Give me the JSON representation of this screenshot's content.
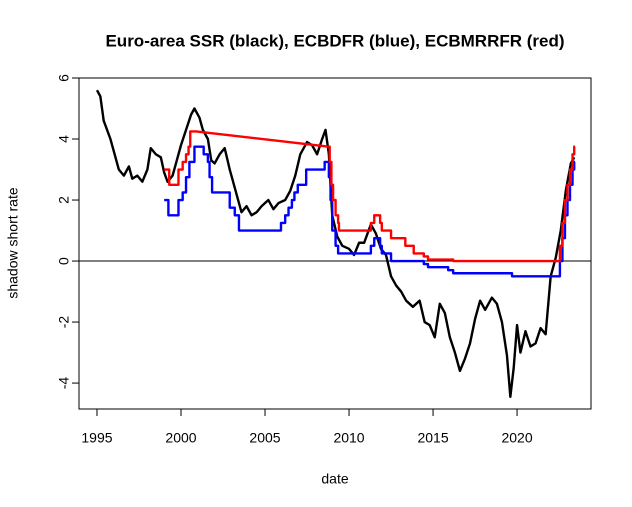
{
  "chart_data": {
    "type": "line",
    "title": "Euro-area SSR (black), ECBDFR (blue), ECBMRRFR (red)",
    "xlabel": "date",
    "ylabel": "shadow short rate",
    "xlim": [
      1993.93,
      2024.4
    ],
    "ylim": [
      -4.85,
      6.0
    ],
    "xticks": [
      1995,
      2000,
      2005,
      2010,
      2015,
      2020
    ],
    "yticks": [
      -4,
      -2,
      0,
      2,
      4,
      6
    ],
    "hline": 0,
    "grid": false,
    "series": [
      {
        "name": "SSR",
        "color": "#000000",
        "x": [
          1995.0,
          1995.2,
          1995.4,
          1995.6,
          1995.8,
          1996.0,
          1996.3,
          1996.6,
          1996.9,
          1997.1,
          1997.4,
          1997.7,
          1998.0,
          1998.2,
          1998.5,
          1998.8,
          1999.0,
          1999.2,
          1999.5,
          1999.7,
          2000.0,
          2000.3,
          2000.6,
          2000.8,
          2001.1,
          2001.3,
          2001.6,
          2001.8,
          2002.0,
          2002.3,
          2002.6,
          2002.9,
          2003.1,
          2003.4,
          2003.6,
          2003.9,
          2004.2,
          2004.5,
          2004.8,
          2005.2,
          2005.5,
          2005.8,
          2006.2,
          2006.5,
          2006.8,
          2007.1,
          2007.5,
          2007.8,
          2008.1,
          2008.4,
          2008.6,
          2008.8,
          2009.0,
          2009.3,
          2009.6,
          2010.0,
          2010.3,
          2010.6,
          2010.9,
          2011.3,
          2011.6,
          2011.9,
          2012.2,
          2012.5,
          2012.8,
          2013.1,
          2013.4,
          2013.8,
          2014.2,
          2014.5,
          2014.8,
          2015.1,
          2015.4,
          2015.7,
          2016.0,
          2016.3,
          2016.6,
          2016.9,
          2017.2,
          2017.5,
          2017.8,
          2018.1,
          2018.5,
          2018.8,
          2019.1,
          2019.4,
          2019.6,
          2019.8,
          2020.0,
          2020.2,
          2020.5,
          2020.8,
          2021.1,
          2021.4,
          2021.7,
          2022.0,
          2022.3,
          2022.6,
          2022.9,
          2023.2,
          2023.4
        ],
        "values": [
          5.6,
          5.4,
          4.6,
          4.3,
          4.0,
          3.6,
          3.0,
          2.8,
          3.1,
          2.7,
          2.8,
          2.6,
          3.0,
          3.7,
          3.5,
          3.4,
          2.9,
          2.6,
          2.8,
          3.2,
          3.8,
          4.3,
          4.8,
          5.0,
          4.7,
          4.3,
          4.0,
          3.3,
          3.2,
          3.5,
          3.7,
          3.0,
          2.6,
          2.0,
          1.6,
          1.8,
          1.5,
          1.6,
          1.8,
          2.0,
          1.7,
          1.9,
          2.0,
          2.3,
          2.8,
          3.5,
          3.9,
          3.8,
          3.5,
          4.0,
          4.3,
          3.5,
          1.5,
          0.8,
          0.5,
          0.4,
          0.2,
          0.6,
          0.6,
          1.2,
          0.9,
          0.4,
          0.2,
          -0.5,
          -0.8,
          -1.0,
          -1.3,
          -1.5,
          -1.3,
          -2.0,
          -2.1,
          -2.5,
          -1.4,
          -1.7,
          -2.5,
          -3.0,
          -3.6,
          -3.2,
          -2.7,
          -1.9,
          -1.3,
          -1.6,
          -1.2,
          -1.4,
          -2.0,
          -3.1,
          -4.45,
          -3.5,
          -2.1,
          -3.0,
          -2.3,
          -2.8,
          -2.7,
          -2.2,
          -2.4,
          -0.5,
          0.1,
          1.0,
          2.3,
          3.2,
          3.4
        ]
      },
      {
        "name": "ECBDFR",
        "color": "#0000ff",
        "x": [
          1999.0,
          1999.25,
          1999.25,
          1999.85,
          1999.85,
          2000.1,
          2000.1,
          2000.3,
          2000.3,
          2000.5,
          2000.5,
          2000.8,
          2000.8,
          2001.35,
          2001.35,
          2001.6,
          2001.6,
          2001.7,
          2001.7,
          2001.85,
          2001.85,
          2002.9,
          2002.9,
          2003.2,
          2003.2,
          2003.45,
          2003.45,
          2005.95,
          2005.95,
          2006.2,
          2006.2,
          2006.4,
          2006.4,
          2006.6,
          2006.6,
          2006.75,
          2006.75,
          2006.95,
          2006.95,
          2007.45,
          2007.45,
          2008.55,
          2008.55,
          2008.8,
          2008.8,
          2008.9,
          2008.9,
          2009.0,
          2009.0,
          2009.2,
          2009.2,
          2009.35,
          2009.35,
          2011.3,
          2011.3,
          2011.5,
          2011.5,
          2011.85,
          2011.85,
          2011.95,
          2011.95,
          2012.5,
          2012.5,
          2014.45,
          2014.45,
          2014.7,
          2014.7,
          2015.9,
          2015.9,
          2016.2,
          2016.2,
          2019.7,
          2019.7,
          2022.55,
          2022.55,
          2022.7,
          2022.7,
          2022.85,
          2022.85,
          2023.0,
          2023.0,
          2023.15,
          2023.15,
          2023.3,
          2023.3,
          2023.4,
          2023.4,
          2023.45
        ],
        "values": [
          2.0,
          2.0,
          1.5,
          1.5,
          2.0,
          2.0,
          2.25,
          2.25,
          2.75,
          2.75,
          3.25,
          3.25,
          3.75,
          3.75,
          3.5,
          3.5,
          3.25,
          3.25,
          2.75,
          2.75,
          2.25,
          2.25,
          1.75,
          1.75,
          1.5,
          1.5,
          1.0,
          1.0,
          1.25,
          1.25,
          1.5,
          1.5,
          1.75,
          1.75,
          2.0,
          2.0,
          2.25,
          2.25,
          2.5,
          2.5,
          3.0,
          3.0,
          3.25,
          3.25,
          2.75,
          2.75,
          2.0,
          2.0,
          1.0,
          1.0,
          0.5,
          0.5,
          0.25,
          0.25,
          0.5,
          0.5,
          0.75,
          0.75,
          0.5,
          0.5,
          0.25,
          0.25,
          0,
          0,
          -0.1,
          -0.1,
          -0.2,
          -0.2,
          -0.3,
          -0.3,
          -0.4,
          -0.4,
          -0.5,
          -0.5,
          0,
          0,
          0.75,
          0.75,
          1.5,
          1.5,
          2.0,
          2.0,
          2.5,
          2.5,
          3.0,
          3.0,
          3.25,
          3.25
        ]
      },
      {
        "name": "ECBMRRFR",
        "color": "#ff0000",
        "x": [
          1999.0,
          1999.3,
          1999.3,
          1999.85,
          1999.85,
          2000.1,
          2000.1,
          2000.3,
          2000.3,
          2000.45,
          2000.45,
          2000.55,
          2000.55,
          2000.9,
          2008.8,
          2008.85,
          2008.85,
          2008.95,
          2008.95,
          2009.05,
          2009.05,
          2009.2,
          2009.2,
          2009.35,
          2009.35,
          2009.4,
          2009.4,
          2011.3,
          2011.3,
          2011.5,
          2011.5,
          2011.85,
          2011.85,
          2011.95,
          2011.95,
          2012.5,
          2012.5,
          2013.35,
          2013.35,
          2013.85,
          2013.85,
          2014.45,
          2014.45,
          2014.7,
          2014.7,
          2016.2,
          2016.2,
          2022.55,
          2022.55,
          2022.7,
          2022.7,
          2022.85,
          2022.85,
          2023.0,
          2023.0,
          2023.15,
          2023.15,
          2023.3,
          2023.3,
          2023.4,
          2023.4,
          2023.45
        ],
        "values": [
          3.0,
          3.0,
          2.5,
          2.5,
          3.0,
          3.0,
          3.25,
          3.25,
          3.5,
          3.5,
          3.75,
          3.75,
          4.25,
          4.25,
          3.75,
          3.75,
          3.25,
          3.25,
          2.5,
          2.5,
          2.0,
          2.0,
          1.5,
          1.5,
          1.25,
          1.25,
          1.0,
          1.0,
          1.25,
          1.25,
          1.5,
          1.5,
          1.25,
          1.25,
          1.0,
          1.0,
          0.75,
          0.75,
          0.5,
          0.5,
          0.25,
          0.25,
          0.15,
          0.15,
          0.05,
          0.05,
          0,
          0,
          0.5,
          0.5,
          1.25,
          1.25,
          2.0,
          2.0,
          2.5,
          2.5,
          3.0,
          3.0,
          3.5,
          3.5,
          3.75,
          3.75
        ]
      }
    ]
  }
}
